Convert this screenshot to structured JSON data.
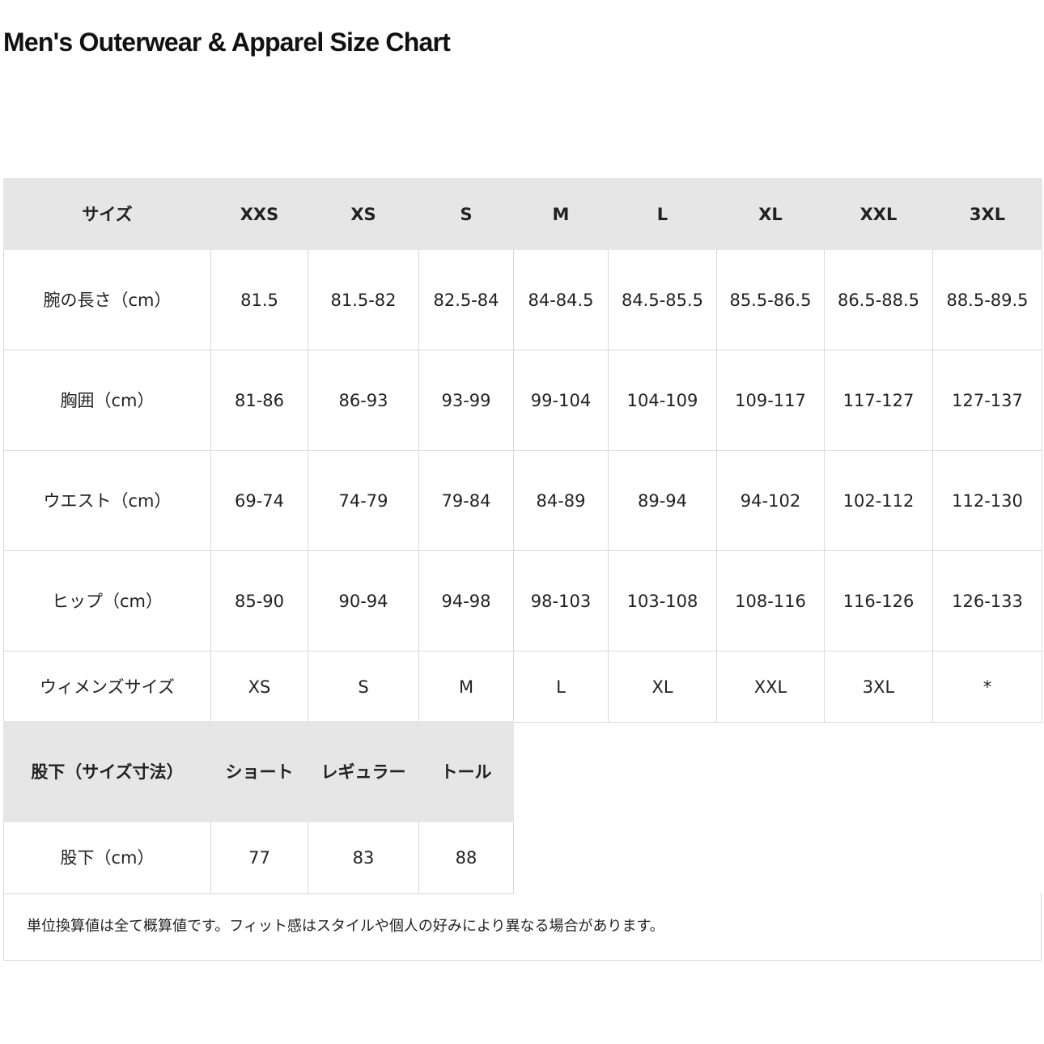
{
  "title": "Men's Outerwear & Apparel Size Chart",
  "size_table": {
    "headers": [
      "サイズ",
      "XXS",
      "XS",
      "S",
      "M",
      "L",
      "XL",
      "XXL",
      "3XL"
    ],
    "rows": [
      {
        "label": "腕の長さ（cm）",
        "values": [
          "81.5",
          "81.5-82",
          "82.5-84",
          "84-84.5",
          "84.5-85.5",
          "85.5-86.5",
          "86.5-88.5",
          "88.5-89.5"
        ]
      },
      {
        "label": "胸囲（cm）",
        "values": [
          "81-86",
          "86-93",
          "93-99",
          "99-104",
          "104-109",
          "109-117",
          "117-127",
          "127-137"
        ]
      },
      {
        "label": "ウエスト（cm）",
        "values": [
          "69-74",
          "74-79",
          "79-84",
          "84-89",
          "89-94",
          "94-102",
          "102-112",
          "112-130"
        ]
      },
      {
        "label": "ヒップ（cm）",
        "values": [
          "85-90",
          "90-94",
          "94-98",
          "98-103",
          "103-108",
          "108-116",
          "116-126",
          "126-133"
        ]
      },
      {
        "label": "ウィメンズサイズ",
        "values": [
          "XS",
          "S",
          "M",
          "L",
          "XL",
          "XXL",
          "3XL",
          "*"
        ]
      }
    ]
  },
  "inseam_table": {
    "headers": [
      "股下（サイズ寸法）",
      "ショート",
      "レギュラー",
      "トール"
    ],
    "rows": [
      {
        "label": "股下（cm）",
        "values": [
          "77",
          "83",
          "88"
        ]
      }
    ]
  },
  "note": "単位換算値は全て概算値です。フィット感はスタイルや個人の好みにより異なる場合があります。"
}
